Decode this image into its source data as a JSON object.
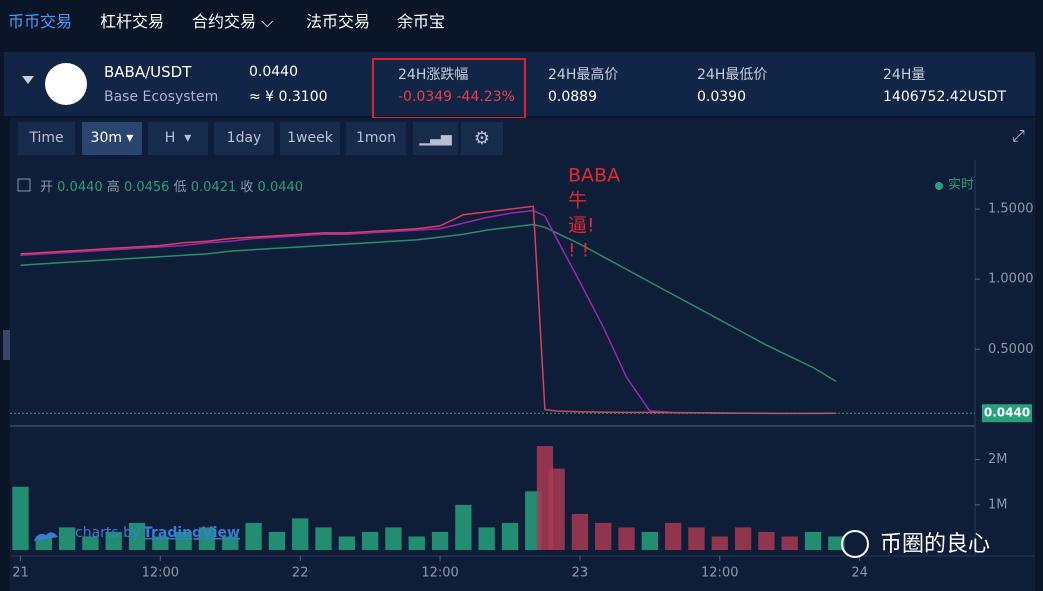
{
  "nav": [
    "币币交易",
    "杠杆交易",
    "合约交易",
    "法币交易",
    "余币宝"
  ],
  "ticker": {
    "pair": "BABA/USDT",
    "ecosystem": "Base Ecosystem",
    "price": "0.0440",
    "price_cny": "≈ ¥ 0.3100",
    "change_label": "24H涨跌幅",
    "change": "-0.0349 -44.23%",
    "high_label": "24H最高价",
    "high": "0.0889",
    "low_label": "24H最低价",
    "low": "0.0390",
    "volume_label": "24H量",
    "volume": "1406752.42USDT"
  },
  "toolbar": [
    "Time",
    "30m",
    "H",
    "1day",
    "1week",
    "1mon"
  ],
  "chart_data": [
    {
      "type": "line",
      "ohlc": [
        {
          "label": "开",
          "value": "0.0440"
        },
        {
          "label": "高",
          "value": "0.0456"
        },
        {
          "label": "低",
          "value": "0.0421"
        },
        {
          "label": "收",
          "value": "0.0440"
        }
      ],
      "realtime": "实时",
      "annotation": [
        "BABA",
        "牛",
        "逼!",
        "! !"
      ],
      "x": [
        0,
        2,
        4,
        6,
        8,
        10,
        12,
        14,
        16,
        18,
        20,
        22,
        24,
        26,
        28,
        30,
        32,
        34,
        36,
        38,
        40,
        42,
        44,
        45,
        46,
        48,
        50,
        52,
        54,
        56,
        58,
        60,
        62,
        64,
        66,
        68,
        70
      ],
      "series": [
        {
          "color": "#2e8b6a",
          "values": [
            1.1,
            1.11,
            1.12,
            1.13,
            1.14,
            1.15,
            1.16,
            1.17,
            1.18,
            1.2,
            1.21,
            1.22,
            1.23,
            1.24,
            1.25,
            1.26,
            1.27,
            1.28,
            1.3,
            1.32,
            1.35,
            1.37,
            1.39,
            1.37,
            1.33,
            1.25,
            1.16,
            1.07,
            0.98,
            0.89,
            0.8,
            0.71,
            0.62,
            0.53,
            0.45,
            0.37,
            0.27
          ]
        },
        {
          "color": "#9b27b0",
          "values": [
            1.17,
            1.18,
            1.19,
            1.2,
            1.21,
            1.22,
            1.23,
            1.24,
            1.26,
            1.27,
            1.29,
            1.3,
            1.31,
            1.32,
            1.32,
            1.33,
            1.34,
            1.35,
            1.36,
            1.4,
            1.44,
            1.47,
            1.49,
            1.45,
            1.29,
            0.98,
            0.66,
            0.3,
            0.06,
            0.05,
            0.048,
            0.046,
            0.045,
            0.044,
            0.043,
            0.043,
            0.043
          ]
        },
        {
          "color": "#d9405a",
          "values": [
            1.18,
            1.19,
            1.2,
            1.21,
            1.22,
            1.23,
            1.24,
            1.26,
            1.27,
            1.29,
            1.3,
            1.31,
            1.32,
            1.33,
            1.33,
            1.34,
            1.35,
            1.36,
            1.38,
            1.46,
            1.48,
            1.5,
            1.52,
            0.07,
            0.06,
            0.055,
            0.052,
            0.05,
            0.05,
            0.048,
            0.046,
            0.045,
            0.044,
            0.043,
            0.042,
            0.043,
            0.044
          ]
        }
      ],
      "xlim": [
        -0.9,
        81.9
      ],
      "ylim": [
        -0.04,
        1.8
      ],
      "yticks": [
        {
          "value": 0.5,
          "label": "0.5000"
        },
        {
          "value": 1,
          "label": "1.0000"
        },
        {
          "value": 1.5,
          "label": "1.5000"
        }
      ],
      "last_price": {
        "value": 0.044,
        "label": "0.0440"
      },
      "last_price_color": "#26a17b"
    },
    {
      "type": "bar",
      "x": [
        0,
        2,
        4,
        6,
        8,
        10,
        12,
        14,
        16,
        18,
        20,
        22,
        24,
        26,
        28,
        30,
        32,
        34,
        36,
        38,
        40,
        42,
        44,
        45,
        46,
        48,
        50,
        52,
        54,
        56,
        58,
        60,
        62,
        64,
        66,
        68,
        70
      ],
      "values": [
        1400000,
        300000,
        500000,
        300000,
        400000,
        600000,
        300000,
        400000,
        500000,
        300000,
        600000,
        400000,
        700000,
        500000,
        300000,
        400000,
        500000,
        300000,
        400000,
        1000000,
        500000,
        600000,
        1300000,
        2300000,
        1800000,
        800000,
        600000,
        500000,
        400000,
        600000,
        500000,
        300000,
        500000,
        400000,
        300000,
        400000,
        300000
      ],
      "up_color": "#26a17b",
      "down_color": "#a83a52",
      "xlim": [
        -0.9,
        81.9
      ],
      "xticks": [
        {
          "value": 0,
          "label": "21"
        },
        {
          "value": 12,
          "label": "12:00"
        },
        {
          "value": 24,
          "label": "22"
        },
        {
          "value": 36,
          "label": "12:00"
        },
        {
          "value": 48,
          "label": "23"
        },
        {
          "value": 60,
          "label": "12:00"
        },
        {
          "value": 72,
          "label": "24"
        }
      ],
      "ylim": [
        0,
        2700000
      ],
      "yticks": [
        {
          "value": 1000000,
          "label": "1M"
        },
        {
          "value": 2000000,
          "label": "2M"
        }
      ]
    }
  ],
  "watermark": {
    "prefix": "charts by",
    "brand": "TradingView"
  },
  "signature": "币圈的良心"
}
